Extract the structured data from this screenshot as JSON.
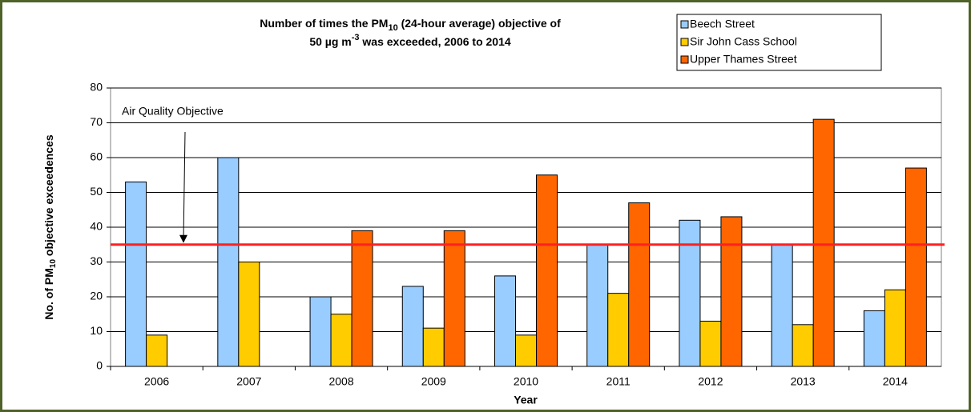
{
  "chart_data": {
    "type": "bar",
    "title": [
      "Number of times the PM",
      "10",
      " (24-hour average) objective of",
      "50 µg m",
      "-3",
      " was exceeded, 2006 to 2014"
    ],
    "y_label": [
      "No. of PM",
      "10",
      " objective exceedences"
    ],
    "x_label": "Year",
    "categories": [
      "2006",
      "2007",
      "2008",
      "2009",
      "2010",
      "2011",
      "2012",
      "2013",
      "2014"
    ],
    "series": [
      {
        "name": "Beech Street",
        "color": "#99ccff",
        "values": [
          53,
          60,
          20,
          23,
          26,
          35,
          42,
          35,
          16
        ]
      },
      {
        "name": "Sir John Cass School",
        "color": "#ffcc00",
        "values": [
          9,
          30,
          15,
          11,
          9,
          21,
          13,
          12,
          22
        ]
      },
      {
        "name": "Upper Thames Street",
        "color": "#ff6600",
        "values": [
          null,
          null,
          39,
          39,
          55,
          47,
          43,
          71,
          57
        ]
      }
    ],
    "reference_line": {
      "value": 35,
      "label": "Air Quality Objective",
      "color": "#ff2020"
    },
    "ylim": [
      0,
      80
    ],
    "yticks": [
      0,
      10,
      20,
      30,
      40,
      50,
      60,
      70,
      80
    ],
    "grid": true,
    "legend": "top-right"
  }
}
